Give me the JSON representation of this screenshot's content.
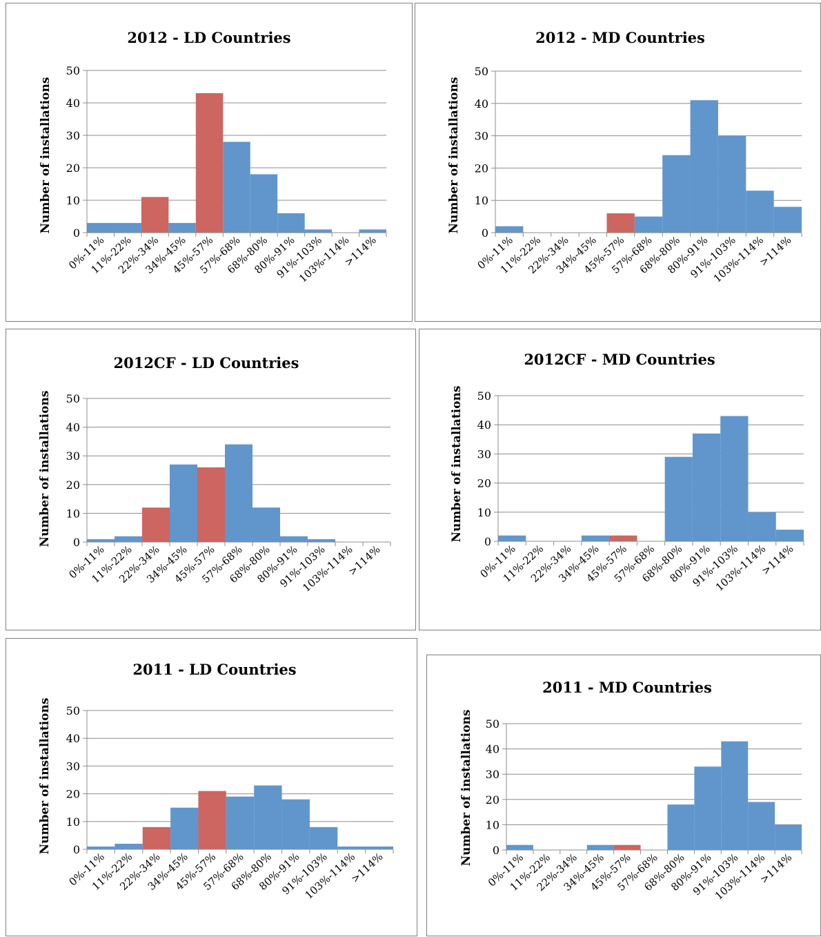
{
  "chart_data": [
    {
      "type": "bar",
      "title": "2012 - LD Countries",
      "ylabel": "Number of installations",
      "xlabel": "",
      "ylim": [
        0,
        50
      ],
      "yticks": [
        0,
        10,
        20,
        30,
        40,
        50
      ],
      "grid": true,
      "categories": [
        "0%-11%",
        "11%-22%",
        "22%-34%",
        "34%-45%",
        "45%-57%",
        "57%-68%",
        "68%-80%",
        "80%-91%",
        "91%-103%",
        "103%-114%",
        ">114%"
      ],
      "values": [
        3,
        3,
        11,
        3,
        43,
        28,
        18,
        6,
        1,
        0,
        1
      ],
      "highlighted": [
        2,
        4
      ],
      "colors": {
        "normal": "#6096cc",
        "highlight": "#cd6560"
      }
    },
    {
      "type": "bar",
      "title": "2012 - MD Countries",
      "ylabel": "Number of installations",
      "xlabel": "",
      "ylim": [
        0,
        50
      ],
      "yticks": [
        0,
        10,
        20,
        30,
        40,
        50
      ],
      "grid": true,
      "categories": [
        "0%-11%",
        "11%-22%",
        "22%-34%",
        "34%-45%",
        "45%-57%",
        "57%-68%",
        "68%-80%",
        "80%-91%",
        "91%-103%",
        "103%-114%",
        ">114%"
      ],
      "values": [
        2,
        0,
        0,
        0,
        6,
        5,
        24,
        41,
        30,
        13,
        8
      ],
      "highlighted": [
        4
      ],
      "colors": {
        "normal": "#6096cc",
        "highlight": "#cd6560"
      }
    },
    {
      "type": "bar",
      "title": "2012CF - LD Countries",
      "ylabel": "Number of installations",
      "xlabel": "",
      "ylim": [
        0,
        50
      ],
      "yticks": [
        0,
        10,
        20,
        30,
        40,
        50
      ],
      "grid": true,
      "categories": [
        "0%-11%",
        "11%-22%",
        "22%-34%",
        "34%-45%",
        "45%-57%",
        "57%-68%",
        "68%-80%",
        "80%-91%",
        "91%-103%",
        "103%-114%",
        ">114%"
      ],
      "values": [
        1,
        2,
        12,
        27,
        26,
        34,
        12,
        2,
        1,
        0,
        0
      ],
      "highlighted": [
        2,
        4
      ],
      "colors": {
        "normal": "#6096cc",
        "highlight": "#cd6560"
      }
    },
    {
      "type": "bar",
      "title": "2012CF - MD Countries",
      "ylabel": "Number of installations",
      "xlabel": "",
      "ylim": [
        0,
        50
      ],
      "yticks": [
        0,
        10,
        20,
        30,
        40,
        50
      ],
      "grid": true,
      "categories": [
        "0%-11%",
        "11%-22%",
        "22%-34%",
        "34%-45%",
        "45%-57%",
        "57%-68%",
        "68%-80%",
        "80%-91%",
        "91%-103%",
        "103%-114%",
        ">114%"
      ],
      "values": [
        2,
        0,
        0,
        2,
        2,
        0,
        29,
        37,
        43,
        10,
        4
      ],
      "highlighted": [
        4
      ],
      "colors": {
        "normal": "#6096cc",
        "highlight": "#cd6560"
      }
    },
    {
      "type": "bar",
      "title": "2011 - LD Countries",
      "ylabel": "Number of installations",
      "xlabel": "",
      "ylim": [
        0,
        50
      ],
      "yticks": [
        0,
        10,
        20,
        30,
        40,
        50
      ],
      "grid": true,
      "categories": [
        "0%-11%",
        "11%-22%",
        "22%-34%",
        "34%-45%",
        "45%-57%",
        "57%-68%",
        "68%-80%",
        "80%-91%",
        "91%-103%",
        "103%-114%",
        ">114%"
      ],
      "values": [
        1,
        2,
        8,
        15,
        21,
        19,
        23,
        18,
        8,
        1,
        1
      ],
      "highlighted": [
        2,
        4
      ],
      "colors": {
        "normal": "#6096cc",
        "highlight": "#cd6560"
      }
    },
    {
      "type": "bar",
      "title": "2011 - MD Countries",
      "ylabel": "Number of installations",
      "xlabel": "",
      "ylim": [
        0,
        50
      ],
      "yticks": [
        0,
        10,
        20,
        30,
        40,
        50
      ],
      "grid": true,
      "categories": [
        "0%-11%",
        "11%-22%",
        "22%-34%",
        "34%-45%",
        "45%-57%",
        "57%-68%",
        "68%-80%",
        "80%-91%",
        "91%-103%",
        "103%-114%",
        ">114%"
      ],
      "values": [
        2,
        0,
        0,
        2,
        2,
        0,
        18,
        33,
        43,
        19,
        10
      ],
      "highlighted": [
        4
      ],
      "colors": {
        "normal": "#6096cc",
        "highlight": "#cd6560"
      }
    }
  ]
}
